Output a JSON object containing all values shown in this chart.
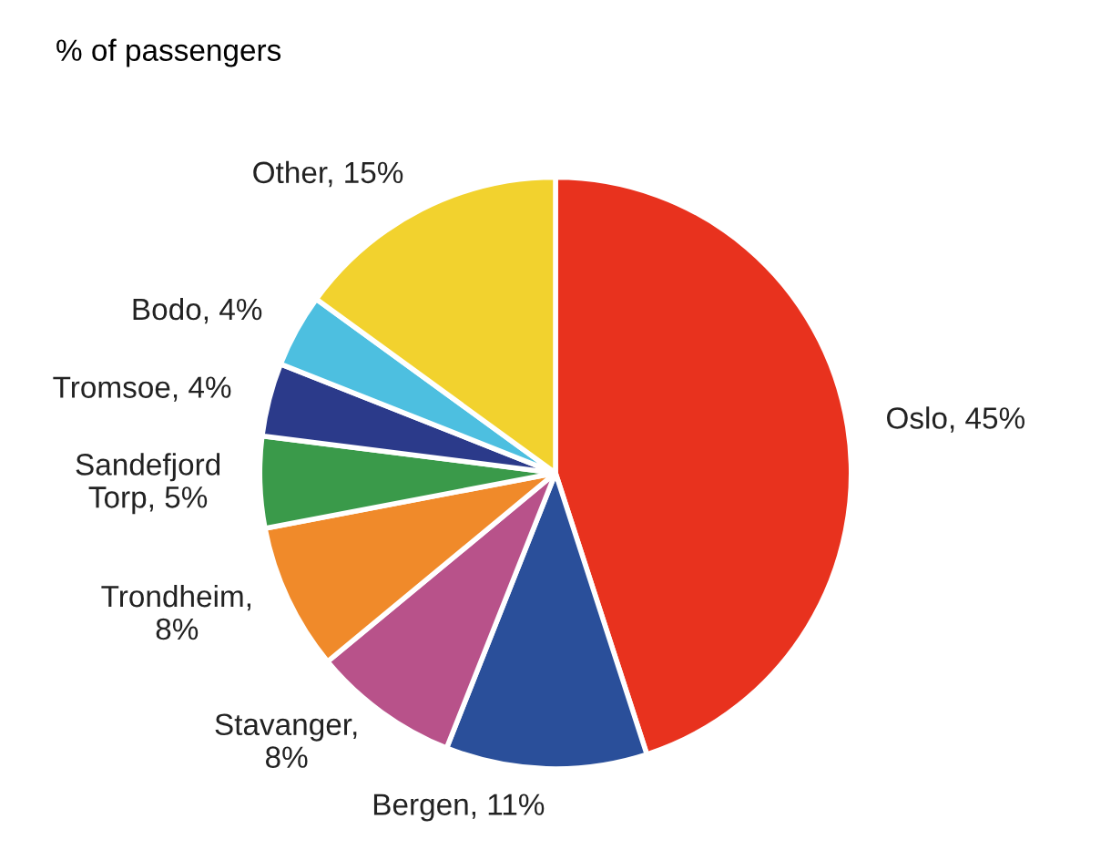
{
  "chart_data": {
    "type": "pie",
    "subtitle": "% of passengers",
    "categories": [
      "Oslo, 45%",
      "Bergen, 11%",
      "Stavanger, 8%",
      "Trondheim, 8%",
      "Sandefjord Torp, 5%",
      "Tromsoe, 4%",
      "Bodo, 4%",
      "Other, 15%"
    ],
    "values": [
      45,
      11,
      8,
      8,
      5,
      4,
      4,
      15
    ],
    "colors": [
      "#e8321e",
      "#2a4f9a",
      "#b8528a",
      "#f08a2a",
      "#3a9a4a",
      "#2b3a8a",
      "#4dbfe0",
      "#f2d22e"
    ],
    "legend": false
  }
}
